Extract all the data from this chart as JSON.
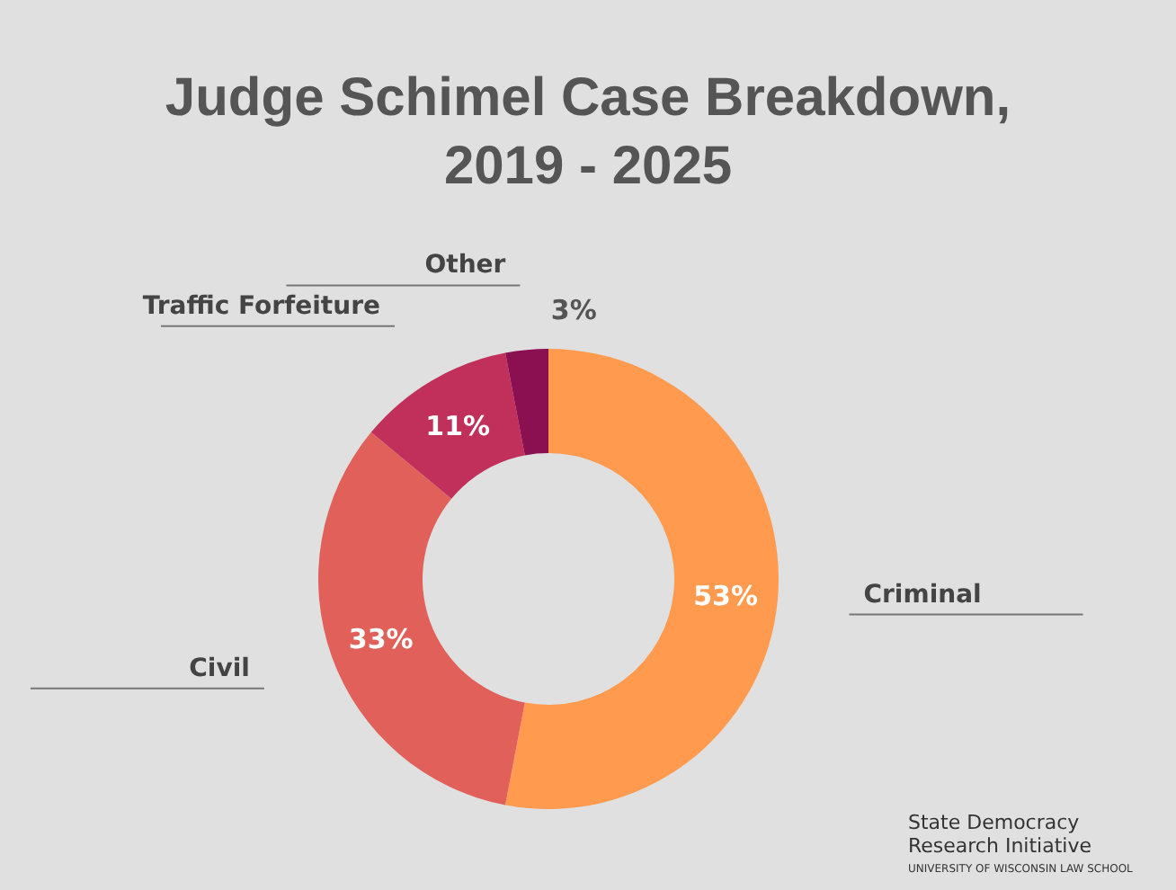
{
  "chart_data": {
    "type": "donut",
    "title": "Judge Schimel Case Breakdown,\n2019 - 2025",
    "categories": [
      "Criminal",
      "Civil",
      "Traffic Forfeiture",
      "Other"
    ],
    "values": [
      53,
      33,
      11,
      3
    ],
    "colors": [
      "#ff9a4f",
      "#e2605a",
      "#c0305a",
      "#8a1052"
    ],
    "value_labels": [
      "53%",
      "33%",
      "11%",
      "3%"
    ],
    "annotations": [
      "State Democracy\nResearch Initiative",
      "UNIVERSITY OF WISCONSIN LAW SCHOOL"
    ]
  }
}
